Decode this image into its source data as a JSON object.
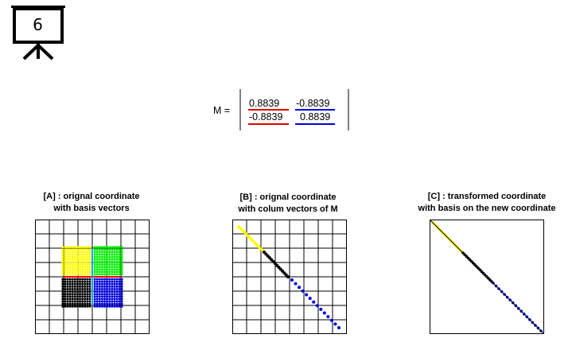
{
  "slide": {
    "number": "6",
    "icon": "presentation-board-icon"
  },
  "equation": {
    "symbol": "M =",
    "rows": [
      [
        "0.8839",
        "-0.8839"
      ],
      [
        "-0.8839",
        "0.8839"
      ]
    ],
    "column_colors": [
      "#e00000",
      "#0000dd"
    ]
  },
  "panels": [
    {
      "id": "A",
      "title_line1": "[A] : orignal coordinate",
      "title_line2": "with basis vectors"
    },
    {
      "id": "B",
      "title_line1": "[B] : orignal coordinate",
      "title_line2": "with colum vectors of M"
    },
    {
      "id": "C",
      "title_line1": "[C] : transformed coordinate",
      "title_line2": "with basis on the new coordinate"
    }
  ],
  "colors": {
    "quadrant_tl": "#ffff00",
    "quadrant_tr": "#00ee00",
    "quadrant_bl": "#000000",
    "quadrant_br": "#0000dd",
    "basis_horizontal": "#ff0000",
    "basis_vertical": "#00aaff"
  }
}
